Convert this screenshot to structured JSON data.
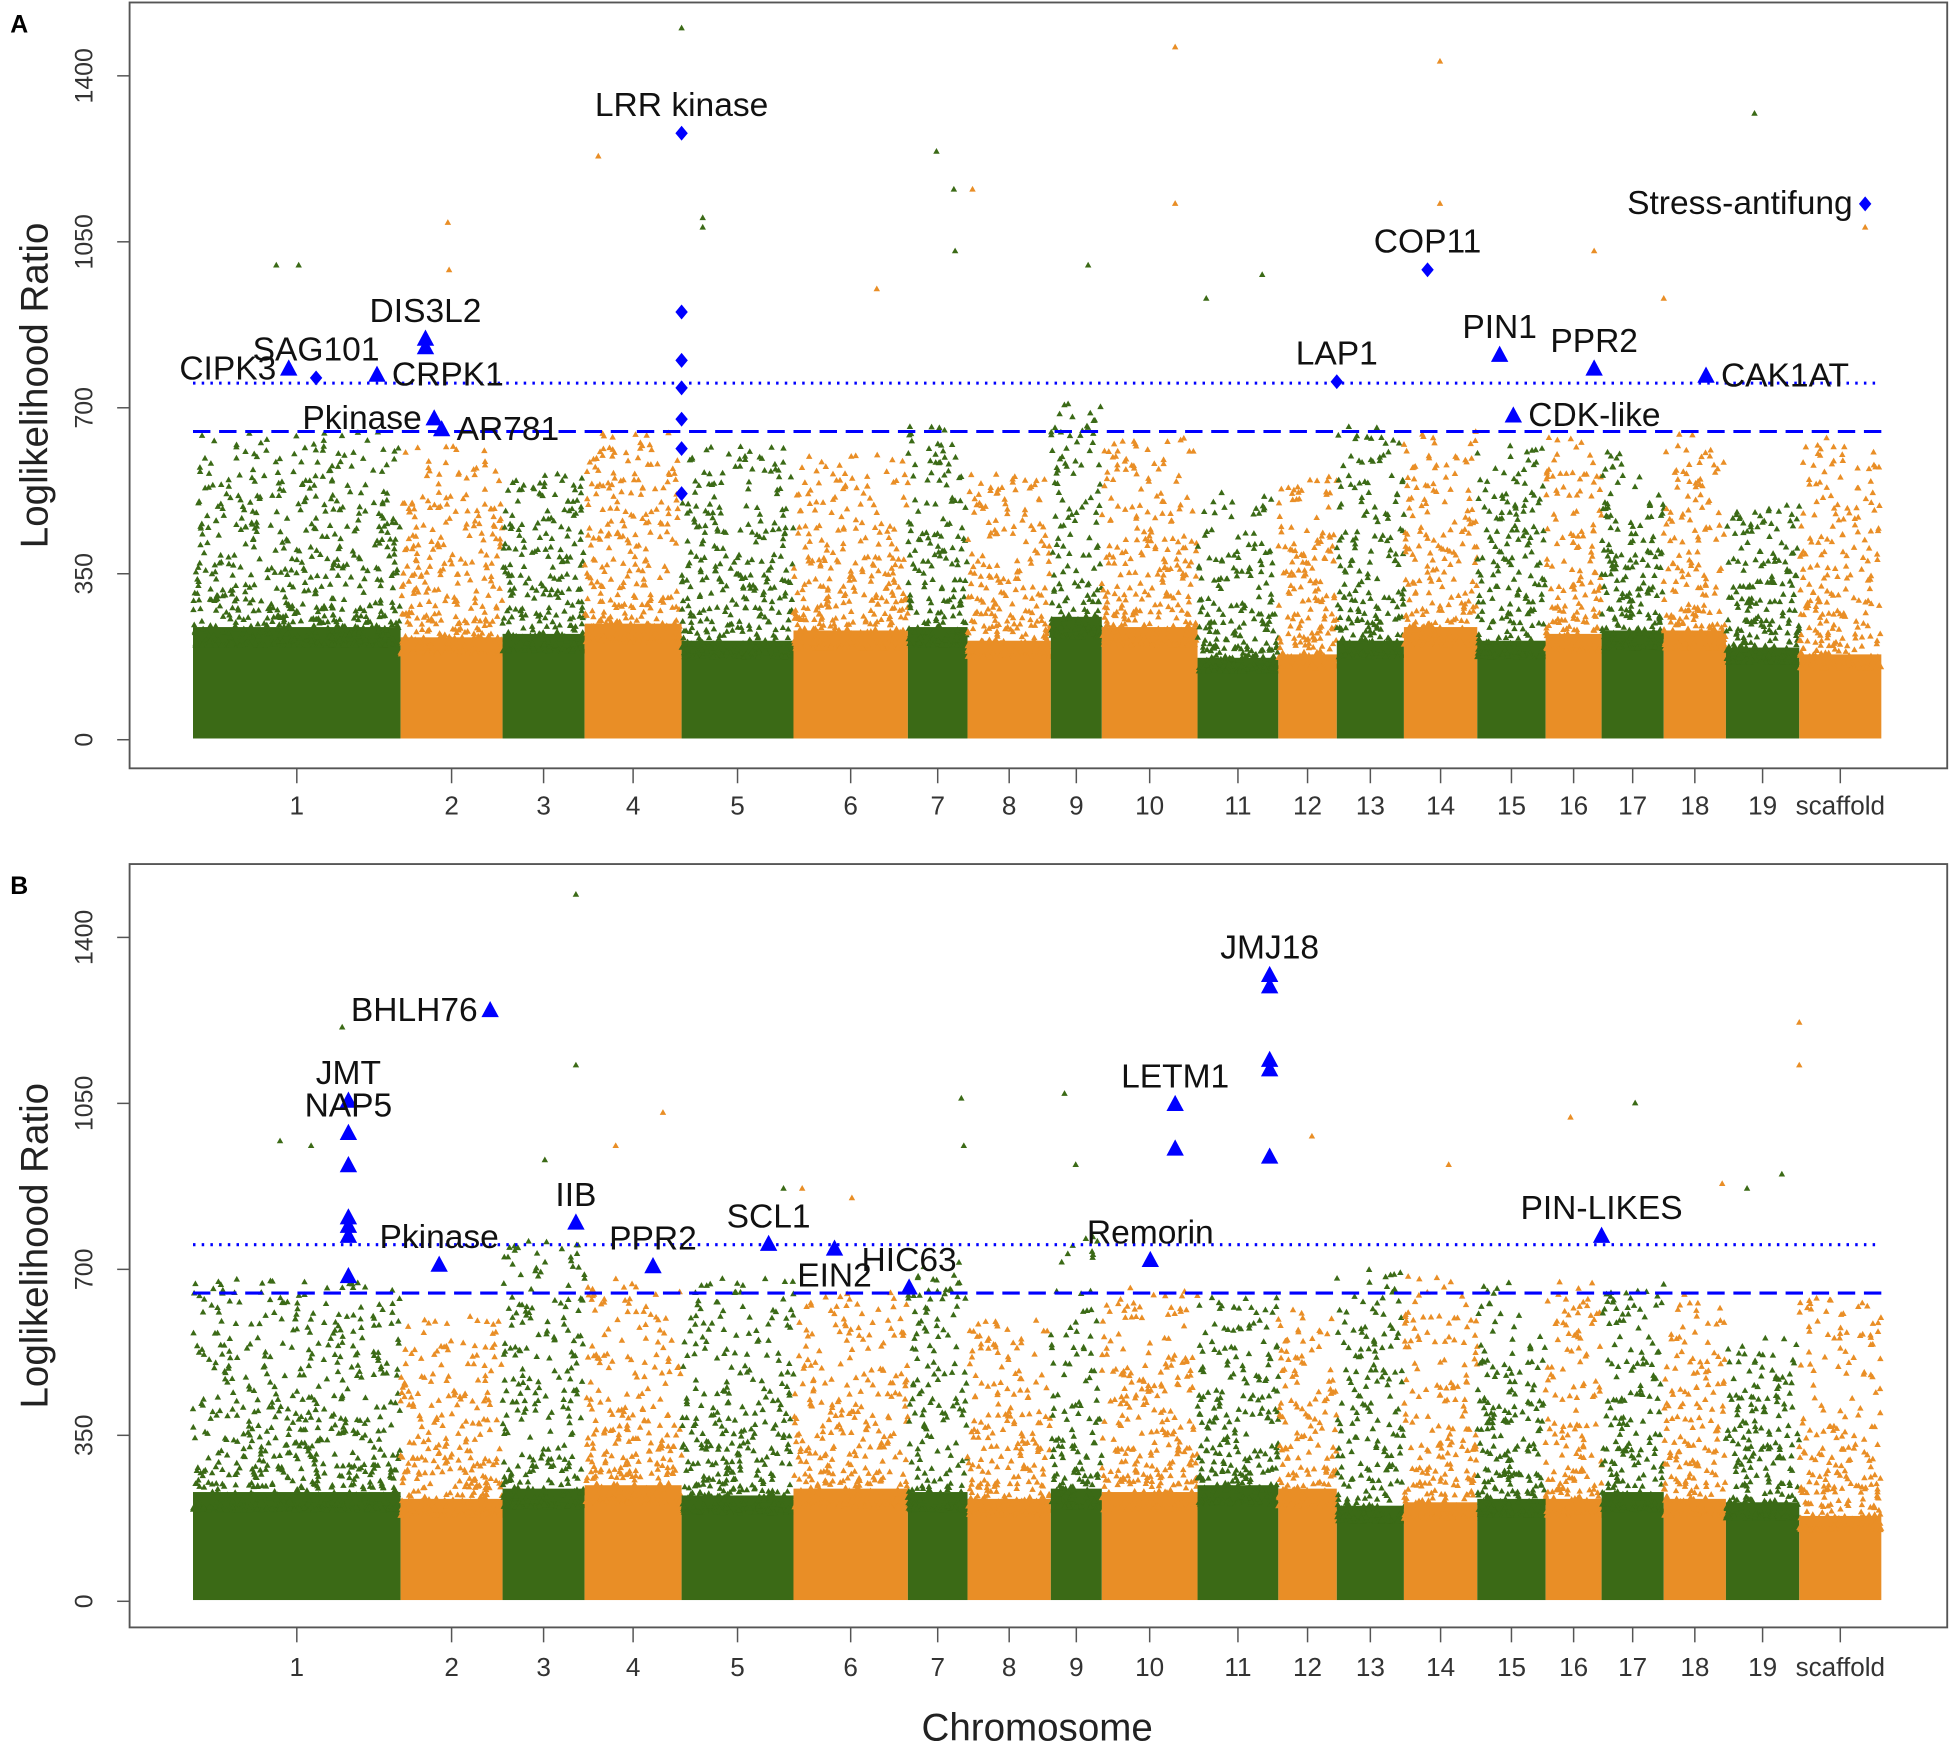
{
  "chart_data": {
    "type": "scatter",
    "subtype": "manhattan",
    "xlabel": "Chromosome",
    "ylabel": "Loglikelihood Ratio",
    "ylim": [
      0,
      1520
    ],
    "yticks": [
      0,
      350,
      700,
      1050,
      1400
    ],
    "colors": {
      "odd": "#3b6a16",
      "even": "#e98e26",
      "highlight": "#0000ff"
    },
    "chromosomes": [
      {
        "label": "1",
        "length": 167
      },
      {
        "label": "2",
        "length": 82
      },
      {
        "label": "3",
        "length": 66
      },
      {
        "label": "4",
        "length": 78
      },
      {
        "label": "5",
        "length": 90
      },
      {
        "label": "6",
        "length": 92
      },
      {
        "label": "7",
        "length": 48
      },
      {
        "label": "8",
        "length": 67
      },
      {
        "label": "9",
        "length": 41
      },
      {
        "label": "10",
        "length": 77
      },
      {
        "label": "11",
        "length": 65
      },
      {
        "label": "12",
        "length": 47
      },
      {
        "label": "13",
        "length": 54
      },
      {
        "label": "14",
        "length": 59
      },
      {
        "label": "15",
        "length": 55
      },
      {
        "label": "16",
        "length": 45
      },
      {
        "label": "17",
        "length": 50
      },
      {
        "label": "18",
        "length": 50
      },
      {
        "label": "19",
        "length": 59
      },
      {
        "label": "scaffold",
        "length": 66
      }
    ],
    "panels": [
      {
        "panel_label": "A",
        "thresholds": {
          "dotted": 752,
          "dashed": 650
        },
        "dense_top": [
          330,
          300,
          310,
          340,
          290,
          320,
          330,
          290,
          360,
          330,
          240,
          250,
          290,
          330,
          290,
          310,
          320,
          320,
          270,
          250
        ],
        "spread_top": [
          650,
          620,
          560,
          650,
          620,
          600,
          660,
          560,
          720,
          640,
          520,
          560,
          660,
          650,
          620,
          650,
          620,
          650,
          500,
          650
        ],
        "outliers": [
          [
            393,
            1500
          ],
          [
            790,
            1460
          ],
          [
            1003,
            1430
          ],
          [
            1256,
            1320
          ],
          [
            326,
            1230
          ],
          [
            598,
            1240
          ],
          [
            612,
            1160
          ],
          [
            627,
            1160
          ],
          [
            790,
            1130
          ],
          [
            1003,
            1130
          ],
          [
            205,
            1090
          ],
          [
            410,
            1080
          ],
          [
            410,
            1100
          ],
          [
            1345,
            1080
          ],
          [
            67,
            1000
          ],
          [
            85,
            1000
          ],
          [
            206,
            990
          ],
          [
            1127,
            1030
          ],
          [
            720,
            1000
          ],
          [
            613,
            1030
          ],
          [
            860,
            980
          ],
          [
            815,
            930
          ],
          [
            550,
            950
          ],
          [
            1183,
            930
          ]
        ],
        "highlights": [
          {
            "label": "CIPK3",
            "pos": 77,
            "value": 781,
            "shape": "triangle",
            "label_side": "left"
          },
          {
            "label": "SAG101",
            "pos": 99,
            "value": 763,
            "shape": "diamond",
            "label_side": "up"
          },
          {
            "label": "CRPK1",
            "pos": 148,
            "value": 768,
            "shape": "triangle",
            "label_side": "right"
          },
          {
            "label": "DIS3L2",
            "pos": 187,
            "value": 844,
            "shape": "triangle",
            "label_side": "up"
          },
          {
            "label": "",
            "pos": 187,
            "value": 826,
            "shape": "triangle"
          },
          {
            "label": "Pkinase",
            "pos": 194,
            "value": 676,
            "shape": "triangle",
            "label_side": "left"
          },
          {
            "label": "AR781",
            "pos": 200,
            "value": 653,
            "shape": "triangle",
            "label_side": "right"
          },
          {
            "label": "LRR kinase",
            "pos": 393,
            "value": 1279,
            "shape": "diamond",
            "label_side": "up"
          },
          {
            "label": "",
            "pos": 393,
            "value": 902,
            "shape": "diamond"
          },
          {
            "label": "",
            "pos": 393,
            "value": 800,
            "shape": "diamond"
          },
          {
            "label": "",
            "pos": 393,
            "value": 742,
            "shape": "diamond"
          },
          {
            "label": "",
            "pos": 393,
            "value": 676,
            "shape": "diamond"
          },
          {
            "label": "",
            "pos": 393,
            "value": 614,
            "shape": "diamond"
          },
          {
            "label": "",
            "pos": 393,
            "value": 519,
            "shape": "diamond"
          },
          {
            "label": "LAP1",
            "pos": 920,
            "value": 755,
            "shape": "diamond",
            "label_side": "up"
          },
          {
            "label": "COP11",
            "pos": 993,
            "value": 991,
            "shape": "diamond",
            "label_side": "up"
          },
          {
            "label": "PIN1",
            "pos": 1051,
            "value": 810,
            "shape": "triangle",
            "label_side": "up"
          },
          {
            "label": "CDK-like",
            "pos": 1062,
            "value": 682,
            "shape": "triangle",
            "label_side": "right"
          },
          {
            "label": "PPR2",
            "pos": 1127,
            "value": 781,
            "shape": "triangle",
            "label_side": "up"
          },
          {
            "label": "CAK1AT",
            "pos": 1217,
            "value": 766,
            "shape": "triangle",
            "label_side": "right"
          },
          {
            "label": "Stress-antifung",
            "pos": 1345,
            "value": 1130,
            "shape": "diamond",
            "label_side": "left"
          }
        ]
      },
      {
        "panel_label": "B",
        "thresholds": {
          "dotted": 752,
          "dashed": 650
        },
        "dense_top": [
          320,
          300,
          330,
          340,
          310,
          330,
          320,
          300,
          330,
          320,
          340,
          330,
          280,
          290,
          300,
          300,
          320,
          300,
          290,
          250
        ],
        "spread_top": [
          680,
          600,
          760,
          680,
          680,
          660,
          720,
          600,
          780,
          660,
          640,
          620,
          700,
          700,
          680,
          680,
          680,
          660,
          560,
          640
        ],
        "outliers": [
          [
            308,
            1490
          ],
          [
            308,
            1130
          ],
          [
            120,
            1210
          ],
          [
            1292,
            1220
          ],
          [
            1292,
            1130
          ],
          [
            1160,
            1050
          ],
          [
            701,
            1070
          ],
          [
            618,
            1060
          ],
          [
            378,
            1030
          ],
          [
            340,
            960
          ],
          [
            900,
            980
          ],
          [
            1278,
            900
          ],
          [
            1230,
            880
          ],
          [
            1250,
            870
          ],
          [
            70,
            970
          ],
          [
            95,
            960
          ],
          [
            620,
            960
          ],
          [
            1108,
            1020
          ],
          [
            710,
            920
          ],
          [
            1010,
            920
          ],
          [
            475,
            870
          ],
          [
            490,
            870
          ],
          [
            530,
            850
          ],
          [
            283,
            930
          ]
        ],
        "highlights": [
          {
            "label": "BHLH76",
            "pos": 239,
            "value": 1245,
            "shape": "triangle",
            "label_side": "left"
          },
          {
            "label": "JMT",
            "pos": 125,
            "value": 1054,
            "shape": "triangle",
            "label_side": "up"
          },
          {
            "label": "NAP5",
            "pos": 125,
            "value": 986,
            "shape": "triangle",
            "label_side": "up"
          },
          {
            "label": "",
            "pos": 125,
            "value": 918,
            "shape": "triangle"
          },
          {
            "label": "",
            "pos": 125,
            "value": 808,
            "shape": "triangle"
          },
          {
            "label": "",
            "pos": 125,
            "value": 790,
            "shape": "triangle"
          },
          {
            "label": "",
            "pos": 125,
            "value": 769,
            "shape": "triangle"
          },
          {
            "label": "",
            "pos": 125,
            "value": 684,
            "shape": "triangle"
          },
          {
            "label": "Pkinase",
            "pos": 198,
            "value": 708,
            "shape": "triangle",
            "label_side": "up"
          },
          {
            "label": "IIB",
            "pos": 308,
            "value": 797,
            "shape": "triangle",
            "label_side": "up"
          },
          {
            "label": "PPR2",
            "pos": 370,
            "value": 705,
            "shape": "triangle",
            "label_side": "up"
          },
          {
            "label": "SCL1",
            "pos": 463,
            "value": 752,
            "shape": "triangle",
            "label_side": "up"
          },
          {
            "label": "EIN2",
            "pos": 516,
            "value": 742,
            "shape": "triangle",
            "label_side": "down"
          },
          {
            "label": "HIC63",
            "pos": 576,
            "value": 660,
            "shape": "triangle",
            "label_side": "up"
          },
          {
            "label": "Remorin",
            "pos": 770,
            "value": 718,
            "shape": "triangle",
            "label_side": "up"
          },
          {
            "label": "LETM1",
            "pos": 790,
            "value": 1047,
            "shape": "triangle",
            "label_side": "up"
          },
          {
            "label": "",
            "pos": 790,
            "value": 953,
            "shape": "triangle"
          },
          {
            "label": "JMJ18",
            "pos": 866,
            "value": 1319,
            "shape": "triangle",
            "label_side": "up"
          },
          {
            "label": "",
            "pos": 866,
            "value": 1295,
            "shape": "triangle"
          },
          {
            "label": "",
            "pos": 866,
            "value": 1140,
            "shape": "triangle"
          },
          {
            "label": "",
            "pos": 866,
            "value": 1120,
            "shape": "triangle"
          },
          {
            "label": "",
            "pos": 866,
            "value": 936,
            "shape": "triangle"
          },
          {
            "label": "PIN-LIKES",
            "pos": 1133,
            "value": 769,
            "shape": "triangle",
            "label_side": "up"
          }
        ]
      }
    ]
  }
}
